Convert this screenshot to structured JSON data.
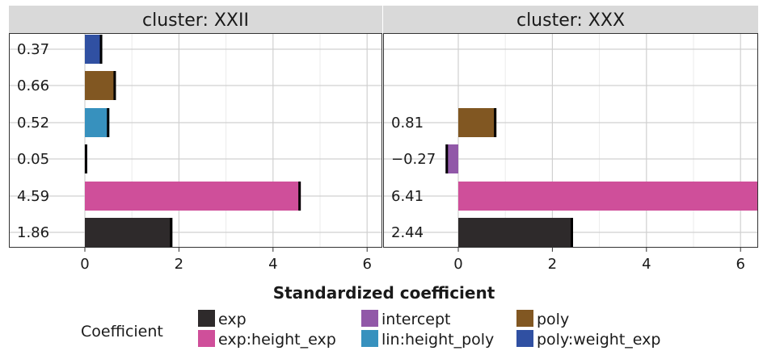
{
  "chart_data": {
    "type": "bar",
    "orientation": "horizontal",
    "xlabel": "Standardized coefficient",
    "xlim": [
      -0.45,
      6.4
    ],
    "xticks": [
      0,
      2,
      4,
      6
    ],
    "grid": true,
    "legend": {
      "title": "Coefficient",
      "position": "bottom",
      "items": [
        {
          "name": "exp",
          "color": "#2e2a2b"
        },
        {
          "name": "exp:height_exp",
          "color": "#cf4f9a"
        },
        {
          "name": "intercept",
          "color": "#9158a8"
        },
        {
          "name": "lin:height_poly",
          "color": "#3791be"
        },
        {
          "name": "poly",
          "color": "#815722"
        },
        {
          "name": "poly:weight_exp",
          "color": "#3050a2"
        }
      ]
    },
    "panels": [
      {
        "strip": "cluster: XXII",
        "bars": [
          {
            "coefficient": "poly:weight_exp",
            "value": 0.37,
            "label": "0.37"
          },
          {
            "coefficient": "poly",
            "value": 0.66,
            "label": "0.66"
          },
          {
            "coefficient": "lin:height_poly",
            "value": 0.52,
            "label": "0.52"
          },
          {
            "coefficient": "intercept",
            "value": 0.05,
            "label": "0.05"
          },
          {
            "coefficient": "exp:height_exp",
            "value": 4.59,
            "label": "4.59"
          },
          {
            "coefficient": "exp",
            "value": 1.86,
            "label": "1.86"
          }
        ]
      },
      {
        "strip": "cluster: XXX",
        "bars": [
          {
            "coefficient": "poly",
            "value": 0.81,
            "label": "0.81"
          },
          {
            "coefficient": "intercept",
            "value": -0.27,
            "label": "−0.27"
          },
          {
            "coefficient": "exp:height_exp",
            "value": 6.41,
            "label": "6.41"
          },
          {
            "coefficient": "exp",
            "value": 2.44,
            "label": "2.44"
          }
        ]
      }
    ]
  }
}
